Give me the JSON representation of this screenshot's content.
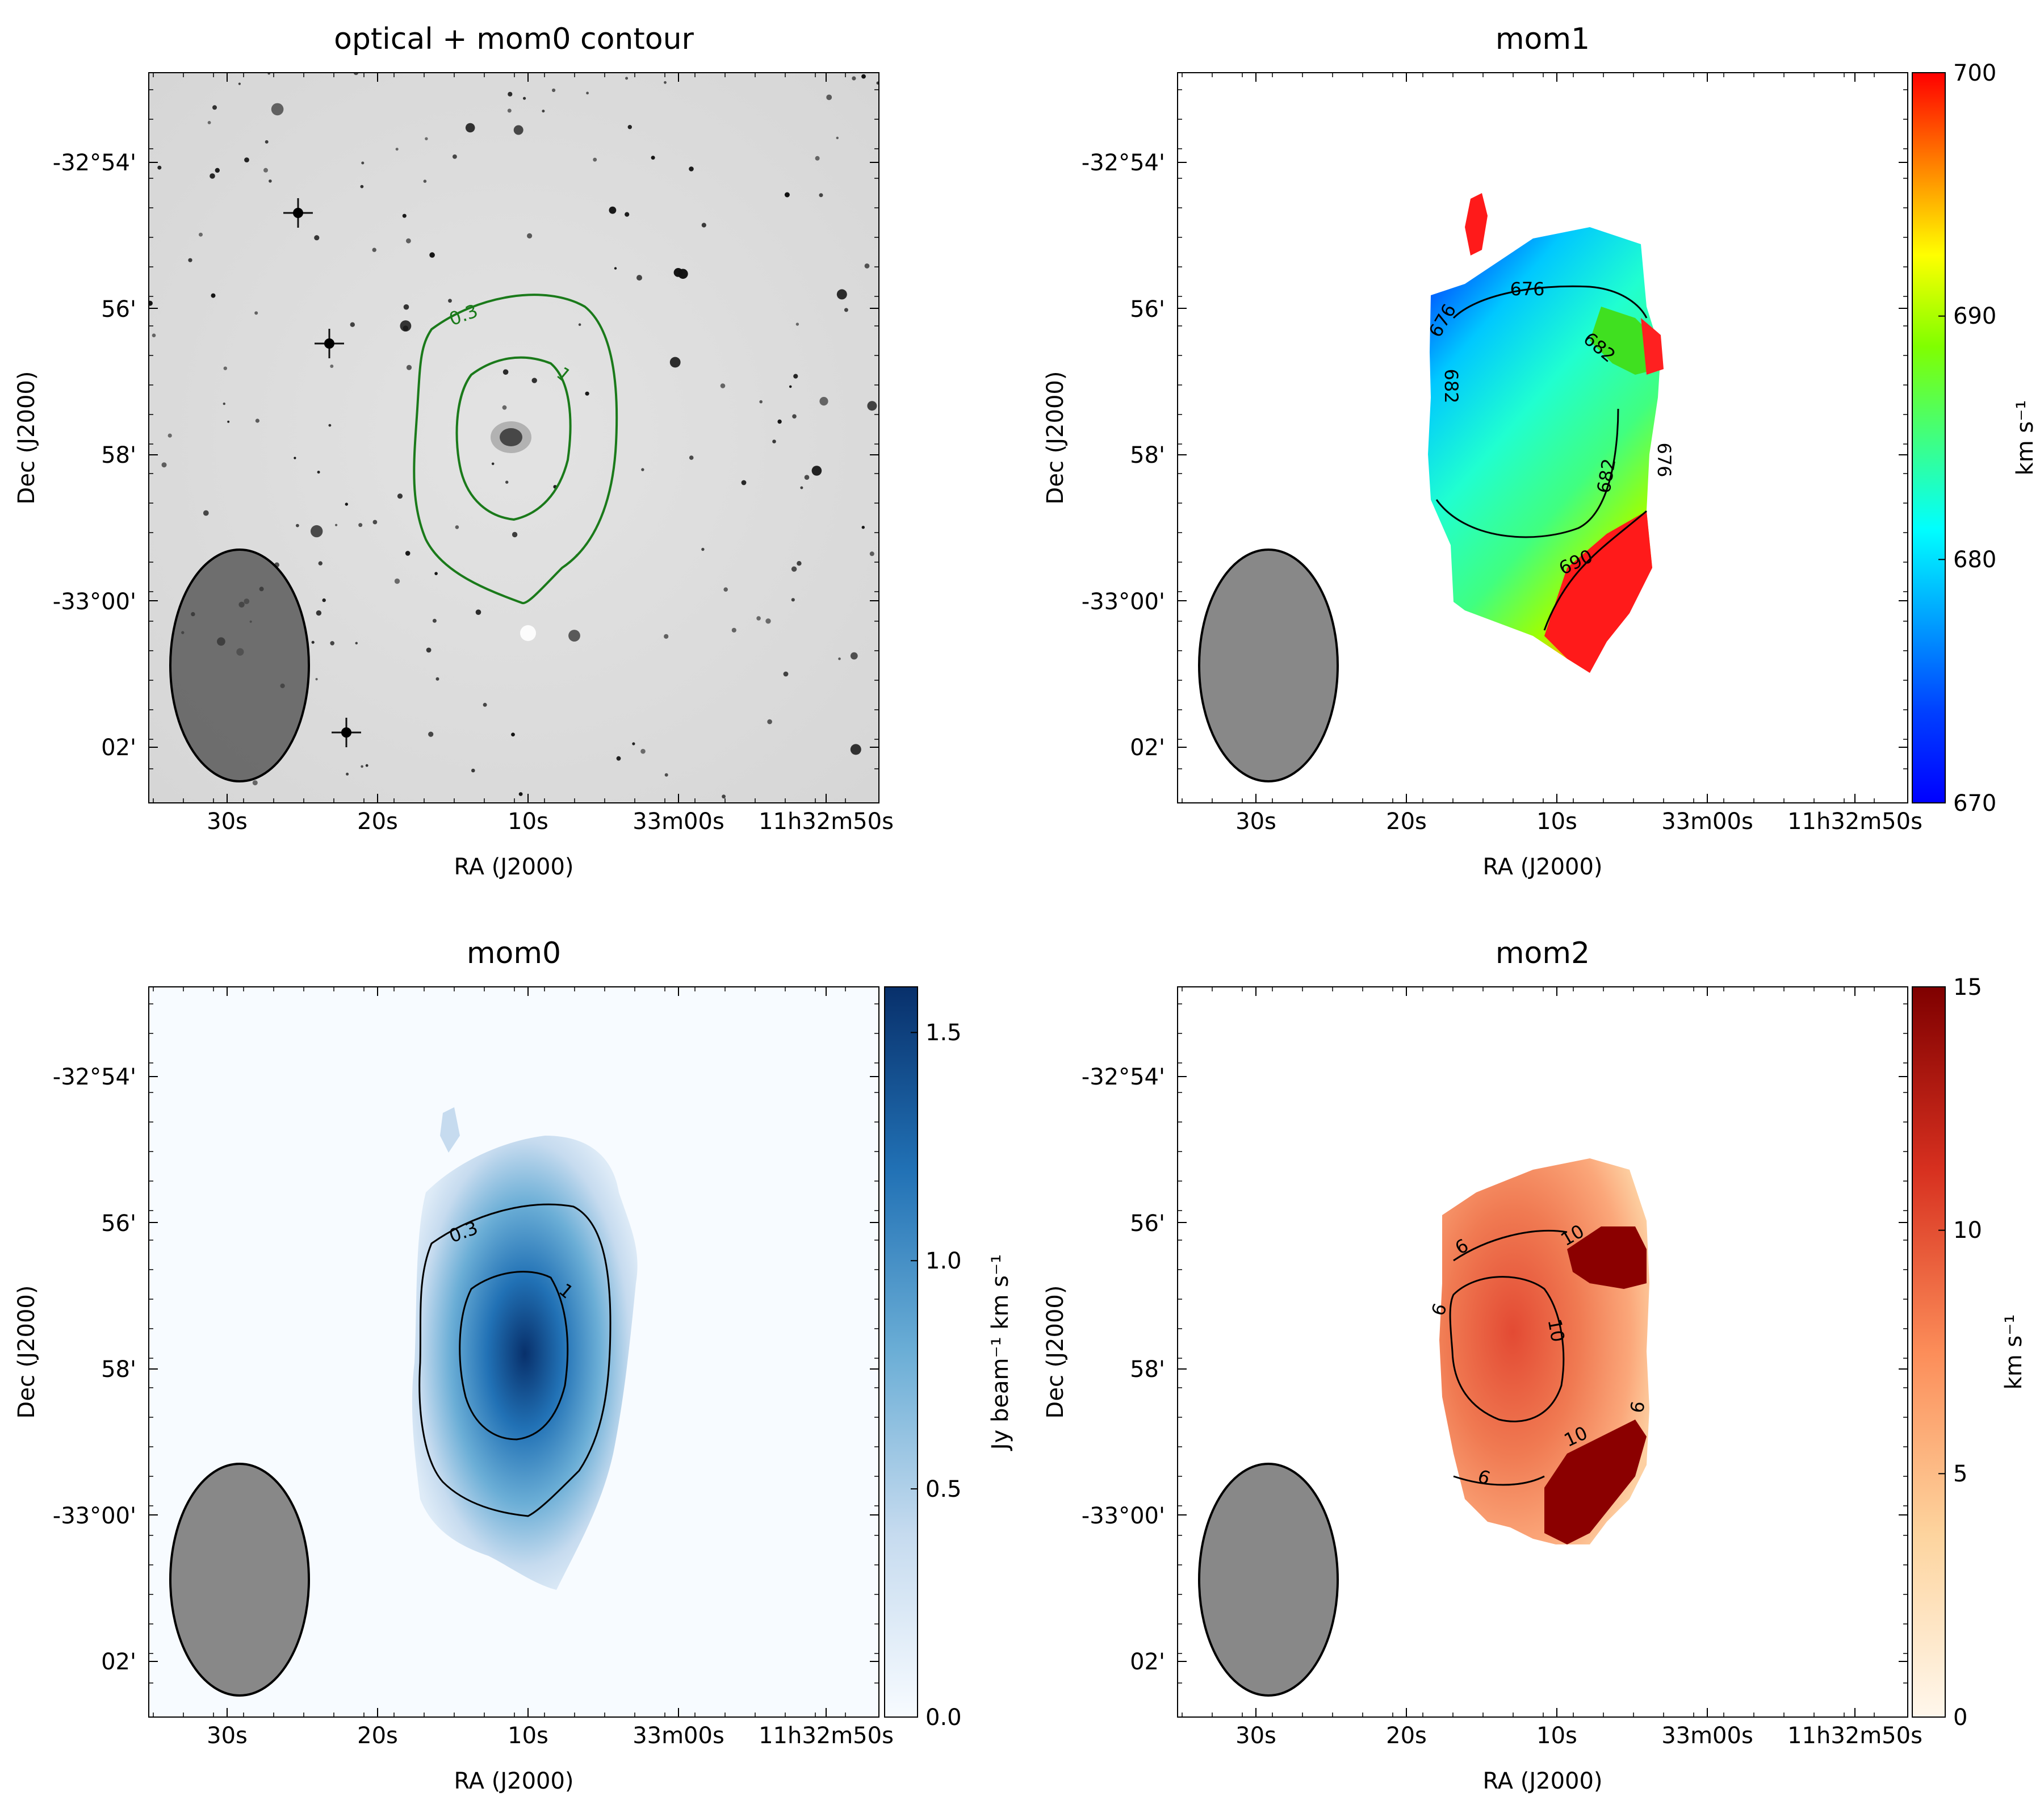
{
  "chart_data": [
    {
      "type": "heatmap",
      "title": "optical + mom0 contour",
      "xlabel": "RA (J2000)",
      "ylabel": "Dec (J2000)",
      "xticks": [
        "30s",
        "20s",
        "10s",
        "33m00s",
        "11h32m50s"
      ],
      "yticks": [
        "-32°54'",
        "56'",
        "58'",
        "-33°00'",
        "02'"
      ],
      "image": "optical-greyscale",
      "contour_levels": [
        "0.3",
        "1"
      ],
      "contour_color": "#1a7a1a",
      "beam_color": "#666666"
    },
    {
      "type": "heatmap",
      "title": "mom1",
      "xlabel": "RA (J2000)",
      "ylabel": "Dec (J2000)",
      "xticks": [
        "30s",
        "20s",
        "10s",
        "33m00s",
        "11h32m50s"
      ],
      "yticks": [
        "-32°54'",
        "56'",
        "58'",
        "-33°00'",
        "02'"
      ],
      "colormap": "jet",
      "colorbar": {
        "label": "km s⁻¹",
        "range": [
          670,
          700
        ],
        "ticks": [
          "670",
          "680",
          "690",
          "700"
        ]
      },
      "contour_levels": [
        "676",
        "682",
        "690"
      ],
      "beam_color": "#888888"
    },
    {
      "type": "heatmap",
      "title": "mom0",
      "xlabel": "RA (J2000)",
      "ylabel": "Dec (J2000)",
      "xticks": [
        "30s",
        "20s",
        "10s",
        "33m00s",
        "11h32m50s"
      ],
      "yticks": [
        "-32°54'",
        "56'",
        "58'",
        "-33°00'",
        "02'"
      ],
      "colormap": "Blues",
      "colorbar": {
        "label": "Jy beam⁻¹ km s⁻¹",
        "range": [
          0.0,
          1.6
        ],
        "ticks": [
          "0.0",
          "0.5",
          "1.0",
          "1.5"
        ]
      },
      "contour_levels": [
        "0.3",
        "1"
      ],
      "beam_color": "#888888"
    },
    {
      "type": "heatmap",
      "title": "mom2",
      "xlabel": "RA (J2000)",
      "ylabel": "Dec (J2000)",
      "xticks": [
        "30s",
        "20s",
        "10s",
        "33m00s",
        "11h32m50s"
      ],
      "yticks": [
        "-32°54'",
        "56'",
        "58'",
        "-33°00'",
        "02'"
      ],
      "colormap": "OrRd",
      "colorbar": {
        "label": "km s⁻¹",
        "range": [
          0,
          15
        ],
        "ticks": [
          "0",
          "5",
          "10",
          "15"
        ]
      },
      "contour_levels": [
        "6",
        "10"
      ],
      "beam_color": "#888888"
    }
  ]
}
